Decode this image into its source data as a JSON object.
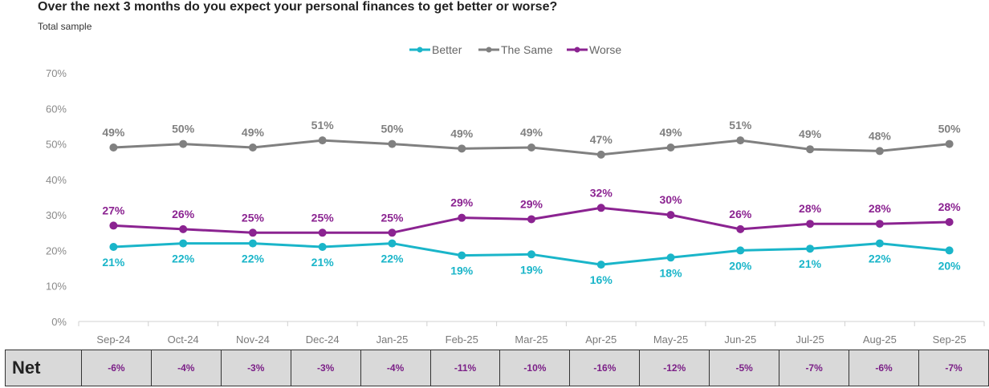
{
  "title": "Over the next 3 months do you expect your personal finances to get better or worse?",
  "subtitle": "Total sample",
  "chart_data": {
    "type": "line",
    "title": "Over the next 3 months do you expect your personal finances to get better or worse?",
    "subtitle": "Total sample",
    "categories": [
      "Sep-24",
      "Oct-24",
      "Nov-24",
      "Dec-24",
      "Jan-25",
      "Feb-25",
      "Mar-25",
      "Apr-25",
      "May-25",
      "Jun-25",
      "Jul-25",
      "Aug-25",
      "Sep-25"
    ],
    "y_ticks": [
      "0%",
      "10%",
      "20%",
      "30%",
      "40%",
      "50%",
      "60%",
      "70%"
    ],
    "ylim": [
      0,
      70
    ],
    "grid": false,
    "legend_position": "top-center",
    "series": [
      {
        "name": "Better",
        "color": "#1ab5c9",
        "values": [
          21,
          22,
          22,
          21,
          22,
          18.6,
          18.9,
          16,
          18,
          20,
          20.5,
          22,
          20
        ],
        "labels": [
          "21%",
          "22%",
          "22%",
          "21%",
          "22%",
          "19%",
          "19%",
          "16%",
          "18%",
          "20%",
          "21%",
          "22%",
          "20%"
        ]
      },
      {
        "name": "The Same",
        "color": "#808080",
        "values": [
          49,
          50,
          49,
          51,
          50,
          48.7,
          49,
          47,
          49,
          51,
          48.5,
          48,
          50
        ],
        "labels": [
          "49%",
          "50%",
          "49%",
          "51%",
          "50%",
          "49%",
          "49%",
          "47%",
          "49%",
          "51%",
          "49%",
          "48%",
          "50%"
        ]
      },
      {
        "name": "Worse",
        "color": "#8b2391",
        "values": [
          27,
          26,
          25,
          25,
          25,
          29.2,
          28.8,
          32,
          30,
          26,
          27.5,
          27.5,
          28
        ],
        "labels": [
          "27%",
          "26%",
          "25%",
          "25%",
          "25%",
          "29%",
          "29%",
          "32%",
          "30%",
          "26%",
          "28%",
          "28%",
          "28%"
        ]
      }
    ]
  },
  "net": {
    "label": "Net",
    "values": [
      "-6%",
      "-4%",
      "-3%",
      "-3%",
      "-4%",
      "-11%",
      "-10%",
      "-16%",
      "-12%",
      "-5%",
      "-7%",
      "-6%",
      "-7%"
    ]
  }
}
